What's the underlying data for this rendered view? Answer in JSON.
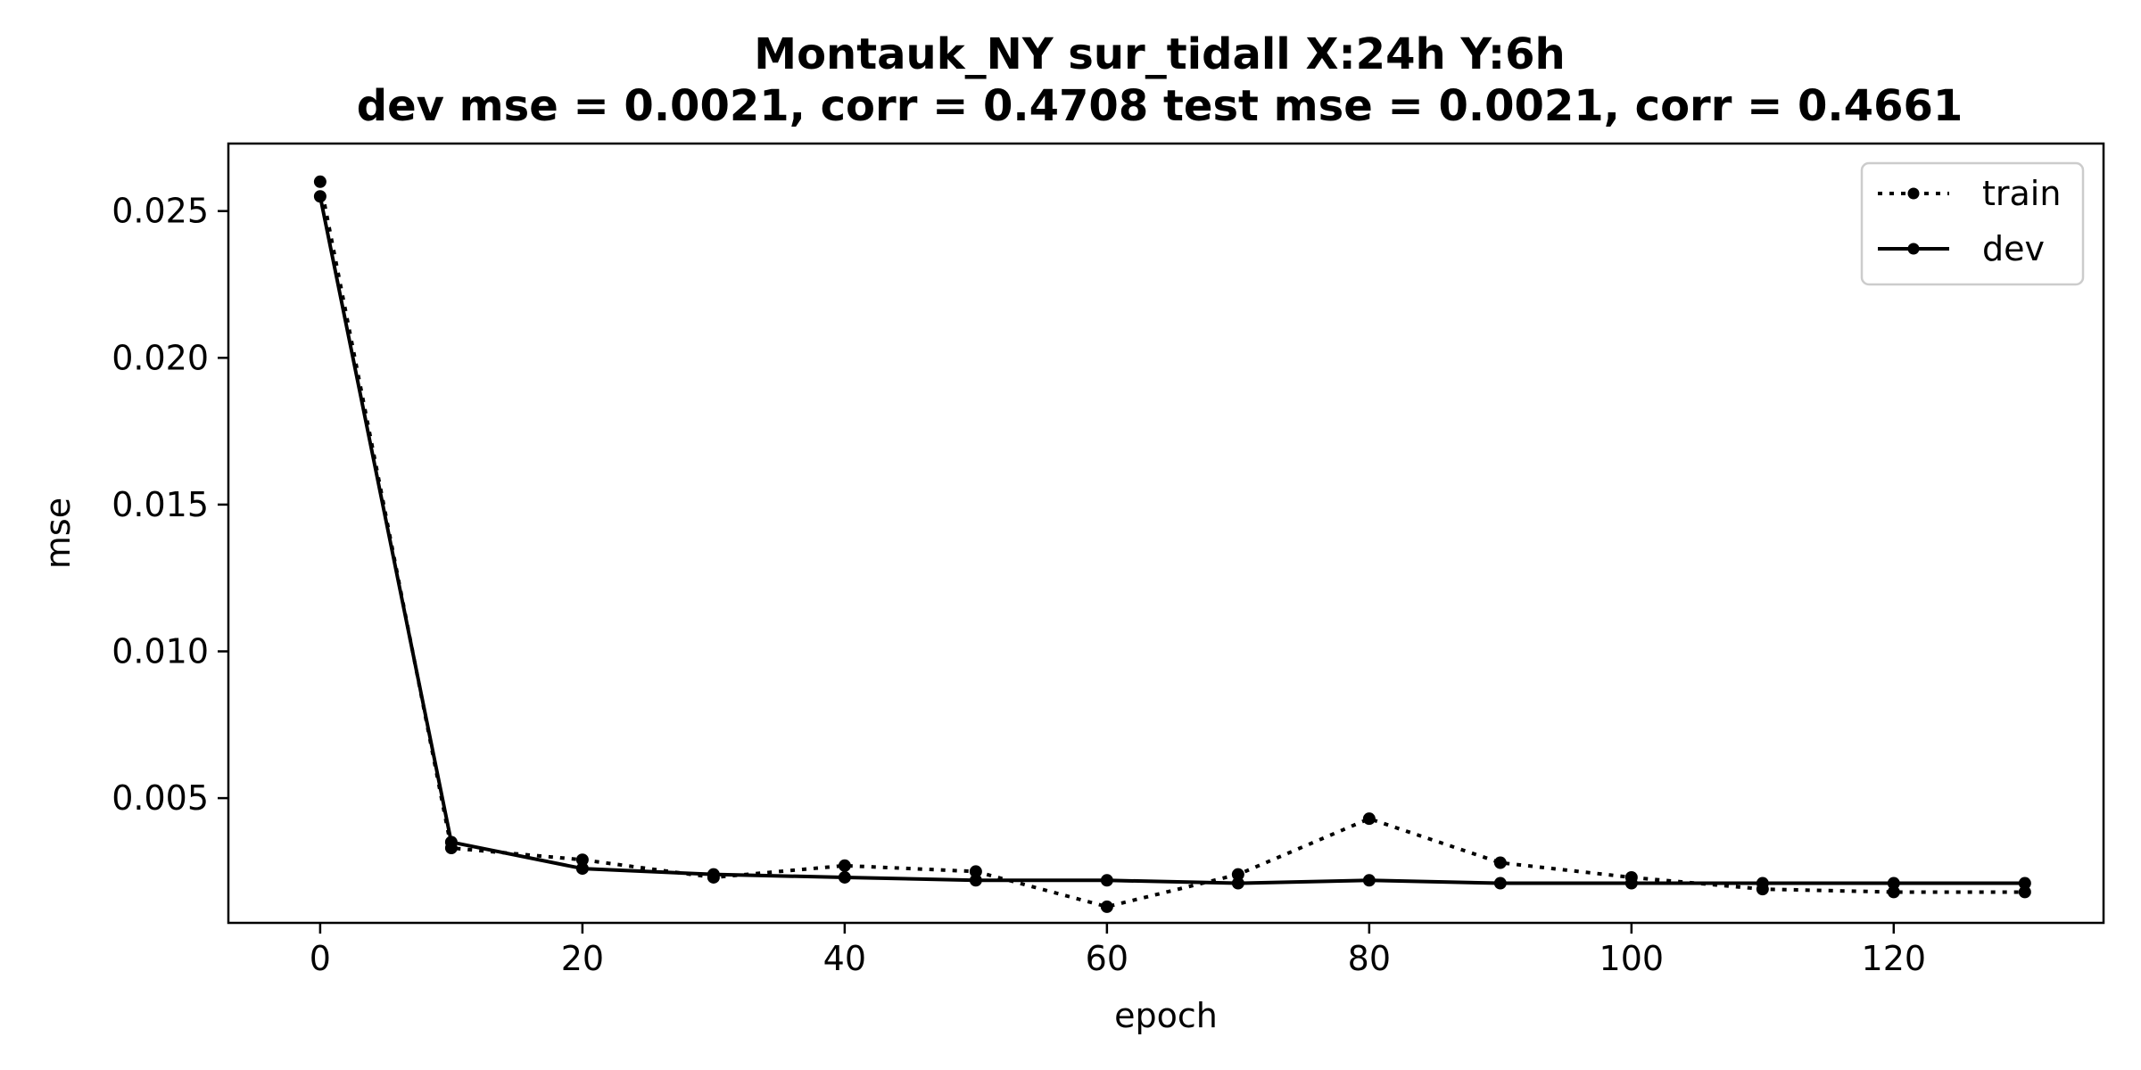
{
  "chart_data": {
    "type": "line",
    "title": "Montauk_NY   sur_tidall   X:24h   Y:6h",
    "subtitle": "dev mse = 0.0021, corr = 0.4708   test mse = 0.0021, corr = 0.4661",
    "xlabel": "epoch",
    "ylabel": "mse",
    "xlim": [
      -7,
      136
    ],
    "ylim": [
      0.00075,
      0.0273
    ],
    "x_ticks": [
      0,
      20,
      40,
      60,
      80,
      100,
      120
    ],
    "x_tick_labels": [
      "0",
      "20",
      "40",
      "60",
      "80",
      "100",
      "120"
    ],
    "y_ticks": [
      0.005,
      0.01,
      0.015,
      0.02,
      0.025
    ],
    "y_tick_labels": [
      "0.005",
      "0.010",
      "0.015",
      "0.020",
      "0.025"
    ],
    "grid": false,
    "legend": "top-right",
    "x": [
      0,
      10,
      20,
      30,
      40,
      50,
      60,
      70,
      80,
      90,
      100,
      110,
      120,
      130
    ],
    "series": [
      {
        "name": "train",
        "style": "dotted",
        "color": "#000000",
        "values": [
          0.026,
          0.0033,
          0.0029,
          0.0023,
          0.0027,
          0.0025,
          0.0013,
          0.0024,
          0.0043,
          0.0028,
          0.0023,
          0.0019,
          0.0018,
          0.0018
        ]
      },
      {
        "name": "dev",
        "style": "solid",
        "color": "#000000",
        "values": [
          0.0255,
          0.0035,
          0.0026,
          0.0024,
          0.0023,
          0.0022,
          0.0022,
          0.0021,
          0.0022,
          0.0021,
          0.0021,
          0.0021,
          0.0021,
          0.0021
        ]
      }
    ]
  }
}
